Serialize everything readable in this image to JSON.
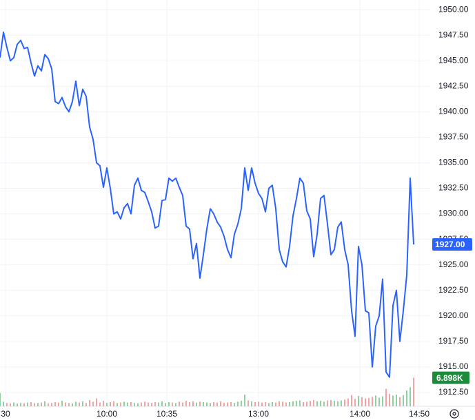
{
  "chart_data": {
    "type": "line",
    "series": [
      {
        "name": "Price",
        "color": "#2962ff",
        "values": [
          1945.3,
          1947.8,
          1946.3,
          1945.0,
          1945.3,
          1946.6,
          1947.0,
          1946.2,
          1946.3,
          1944.8,
          1943.5,
          1944.5,
          1944.0,
          1945.6,
          1945.2,
          1944.2,
          1941.0,
          1940.8,
          1941.4,
          1940.5,
          1940.0,
          1941.0,
          1943.0,
          1940.6,
          1942.2,
          1941.5,
          1938.5,
          1937.3,
          1935.0,
          1934.7,
          1932.6,
          1934.5,
          1932.5,
          1930.0,
          1930.2,
          1929.5,
          1930.6,
          1931.0,
          1930.0,
          1932.8,
          1933.5,
          1932.3,
          1932.1,
          1931.2,
          1930.2,
          1928.6,
          1928.8,
          1931.3,
          1931.4,
          1933.5,
          1933.2,
          1933.5,
          1932.6,
          1931.8,
          1928.8,
          1928.5,
          1925.6,
          1927.1,
          1923.7,
          1926.0,
          1928.5,
          1930.5,
          1930.0,
          1929.2,
          1928.7,
          1927.8,
          1926.5,
          1925.7,
          1928.0,
          1929.0,
          1930.5,
          1934.5,
          1932.3,
          1934.5,
          1933.0,
          1932.0,
          1931.5,
          1930.2,
          1932.5,
          1932.8,
          1930.5,
          1926.5,
          1925.3,
          1924.8,
          1926.8,
          1929.8,
          1931.5,
          1933.5,
          1933.0,
          1930.3,
          1929.5,
          1925.8,
          1928.0,
          1931.5,
          1931.8,
          1929.0,
          1926.0,
          1926.5,
          1928.7,
          1929.2,
          1926.5,
          1925.0,
          1920.5,
          1918.0,
          1926.8,
          1925.0,
          1920.5,
          1920.3,
          1915.0,
          1919.0,
          1920.0,
          1923.6,
          1914.5,
          1914.0,
          1921.0,
          1922.5,
          1917.5,
          1920.5,
          1924.0,
          1933.5,
          1927.0
        ]
      }
    ],
    "volume": {
      "up_color": "#8fd19e",
      "down_color": "#f2a4a4",
      "vlim": [
        0,
        10000
      ],
      "values": [
        3200,
        1100,
        800,
        700,
        900,
        650,
        800,
        700,
        900,
        1000,
        750,
        800,
        900,
        1200,
        700,
        800,
        1000,
        900,
        1300,
        900,
        800,
        700,
        1100,
        900,
        1200,
        800,
        1500,
        1100,
        1900,
        900,
        1300,
        800,
        1000,
        1200,
        800,
        900,
        1100,
        900,
        1000,
        800,
        700,
        900,
        1100,
        900,
        800,
        1000,
        900,
        1200,
        800,
        1000,
        900,
        800,
        1100,
        900,
        1300,
        1000,
        1200,
        900,
        1100,
        1000,
        900,
        800,
        1000,
        900,
        1200,
        800,
        900,
        1000,
        800,
        1100,
        1300,
        2800,
        1400,
        1200,
        1000,
        1100,
        900,
        1000,
        800,
        1000,
        900,
        1200,
        1100,
        900,
        1000,
        1200,
        1300,
        1400,
        1000,
        1100,
        1300,
        1500,
        1200,
        1300,
        1100,
        1400,
        1500,
        1300,
        1200,
        1400,
        1600,
        1900,
        2700,
        1800,
        2500,
        2200,
        1900,
        2000,
        2300,
        2600,
        2100,
        2400,
        4200,
        3000,
        2600,
        2800,
        2200,
        2700,
        3800,
        4600,
        6898
      ],
      "last_label": "6.898K"
    },
    "last_label": "1927.00",
    "ylim": [
      1911.15,
      1950.95
    ],
    "yticks": [
      {
        "value": 1912.5,
        "label": "1912.50"
      },
      {
        "value": 1915,
        "label": "1915.00"
      },
      {
        "value": 1917.5,
        "label": "1917.50"
      },
      {
        "value": 1920,
        "label": "1920.00"
      },
      {
        "value": 1922.5,
        "label": "1922.50"
      },
      {
        "value": 1925,
        "label": "1925.00"
      },
      {
        "value": 1927.5,
        "label": "1927.50"
      },
      {
        "value": 1930,
        "label": "1930.00"
      },
      {
        "value": 1932.5,
        "label": "1932.50"
      },
      {
        "value": 1935,
        "label": "1935.00"
      },
      {
        "value": 1937.5,
        "label": "1937.50"
      },
      {
        "value": 1940,
        "label": "1940.00"
      },
      {
        "value": 1942.5,
        "label": "1942.50"
      },
      {
        "value": 1945,
        "label": "1945.00"
      },
      {
        "value": 1947.5,
        "label": "1947.50"
      },
      {
        "value": 1950,
        "label": "1950.00"
      }
    ],
    "xlim": [
      0,
      125
    ],
    "xticks": [
      {
        "value": 1.6,
        "label": "30"
      },
      {
        "value": 31,
        "label": "10:00"
      },
      {
        "value": 48.4,
        "label": "10:35"
      },
      {
        "value": 75,
        "label": "13:00"
      },
      {
        "value": 104.4,
        "label": "14:00"
      },
      {
        "value": 121.6,
        "label": "14:50"
      }
    ],
    "grid": true
  }
}
